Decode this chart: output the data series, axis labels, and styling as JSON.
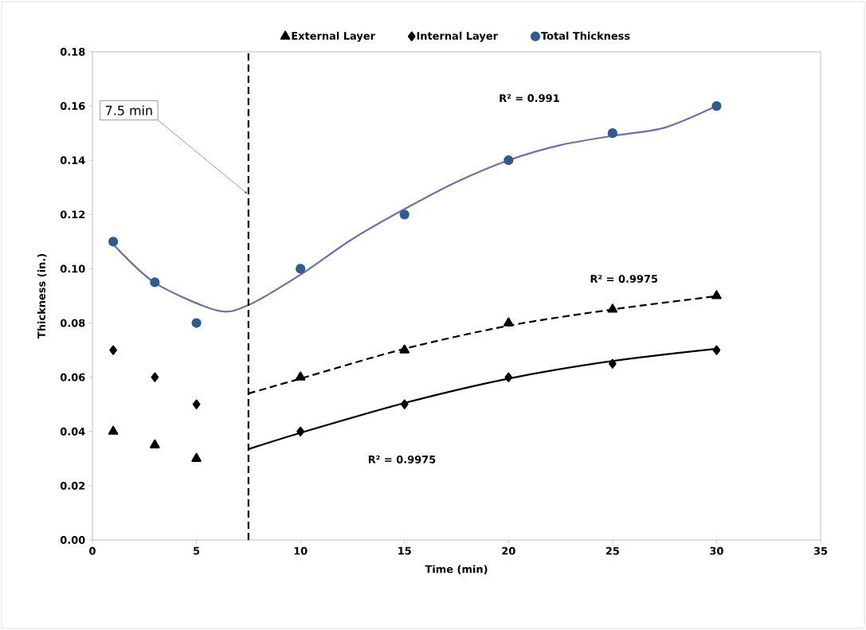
{
  "chart_data": {
    "type": "scatter",
    "xlabel": "Time (min)",
    "ylabel": "Thickness (in.)",
    "xlim": [
      0,
      35
    ],
    "ylim": [
      0,
      0.18
    ],
    "xticks": [
      0,
      5,
      10,
      15,
      20,
      25,
      30,
      35
    ],
    "yticks": [
      {
        "value": 0,
        "label": "0.00"
      },
      {
        "value": 0.02,
        "label": "0.02"
      },
      {
        "value": 0.04,
        "label": "0.04"
      },
      {
        "value": 0.06,
        "label": "0.06"
      },
      {
        "value": 0.08,
        "label": "0.08"
      },
      {
        "value": 0.1,
        "label": "0.10"
      },
      {
        "value": 0.12,
        "label": "0.12"
      },
      {
        "value": 0.14,
        "label": "0.14"
      },
      {
        "value": 0.16,
        "label": "0.16"
      },
      {
        "value": 0.18,
        "label": "0.18"
      }
    ],
    "grid": false,
    "legend": "top",
    "series": [
      {
        "name": "External Layer",
        "marker": "triangle",
        "color": "#000000",
        "x": [
          1,
          3,
          5,
          10,
          15,
          20,
          25,
          30
        ],
        "values": [
          0.04,
          0.035,
          0.03,
          0.06,
          0.07,
          0.08,
          0.085,
          0.09
        ]
      },
      {
        "name": "Internal Layer",
        "marker": "diamond",
        "color": "#000000",
        "x": [
          1,
          3,
          5,
          10,
          15,
          20,
          25,
          30
        ],
        "values": [
          0.07,
          0.06,
          0.05,
          0.04,
          0.05,
          0.06,
          0.065,
          0.07
        ]
      },
      {
        "name": "Total Thickness",
        "marker": "circle",
        "color": "#2f5b8f",
        "x": [
          1,
          3,
          5,
          10,
          15,
          20,
          25,
          30
        ],
        "values": [
          0.11,
          0.095,
          0.08,
          0.1,
          0.12,
          0.14,
          0.15,
          0.16
        ]
      },
      {
        "type": "line",
        "marker": "none",
        "line_style": "solid",
        "color": "#7070a8",
        "x": [
          1,
          3,
          6,
          7.5,
          10,
          12.5,
          15,
          17.5,
          20,
          22.5,
          25,
          27.5,
          30
        ],
        "values": [
          0.109,
          0.0948,
          0.0846,
          0.0866,
          0.0978,
          0.111,
          0.122,
          0.132,
          0.14,
          0.1456,
          0.149,
          0.152,
          0.16
        ]
      },
      {
        "type": "line",
        "marker": "none",
        "line_style": "dashed",
        "color": "#000000",
        "x": [
          7.5,
          10,
          15,
          20,
          25,
          30
        ],
        "values": [
          0.054,
          0.0595,
          0.0705,
          0.079,
          0.085,
          0.0899
        ]
      },
      {
        "type": "line",
        "marker": "none",
        "line_style": "solid",
        "color": "#000000",
        "x": [
          7.5,
          10,
          15,
          20,
          25,
          30
        ],
        "values": [
          0.0335,
          0.0395,
          0.0505,
          0.0595,
          0.066,
          0.0705
        ]
      }
    ],
    "ref_lines": [
      {
        "axis": "x",
        "value": 7.5,
        "label": "7.5 min",
        "color": "#000000",
        "line_style": "dashed"
      }
    ],
    "annotations": [
      "R² = 0.991",
      "R² = 0.9975",
      "R² = 0.9975"
    ]
  }
}
